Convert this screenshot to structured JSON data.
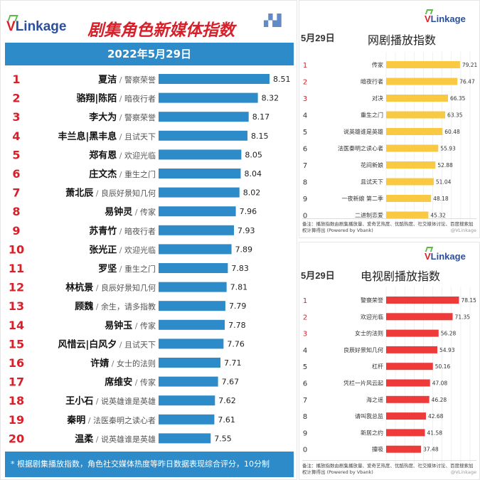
{
  "left": {
    "logo": {
      "v": "V",
      "rest": "Linkage"
    },
    "title": "剧集角色新媒体指数",
    "date": "2022年5月29日",
    "footer": "* 根据剧集播放指数，角色社交媒体热度等昨日数据表现综合评分，10分制",
    "footer_watermark": "VLinkage"
  },
  "right_top": {
    "logo": {
      "v": "V",
      "rest": "Linkage"
    },
    "date": "5月29日",
    "title": "网剧播放指数",
    "note": "备注：播放指数由剧集播放量、爱奇艺热度、优酷热度、社交媒体讨论、百度搜索加权计算得出 (Powered by Vbank)",
    "watermark": "@VLinkage"
  },
  "right_bottom": {
    "logo": {
      "v": "V",
      "rest": "Linkage"
    },
    "date": "5月29日",
    "title": "电视剧播放指数",
    "note": "备注：播放指数由剧集播放量、爱奇艺热度、优酷热度、社交媒体讨论、百度搜索加权计算得出 (Powered by Vbank)",
    "watermark": "@VLinkage"
  },
  "colors": {
    "brand_blue": "#2e8bc9",
    "rank_red": "#d8202a",
    "web_bar": "#f9c943",
    "tv_bar": "#ef3a3a"
  },
  "chart_data": [
    {
      "type": "bar",
      "orientation": "horizontal",
      "title": "剧集角色新媒体指数",
      "subtitle": "2022年5月29日",
      "ranks": [
        "1",
        "2",
        "3",
        "4",
        "5",
        "6",
        "7",
        "8",
        "9",
        "10",
        "11",
        "12",
        "13",
        "14",
        "15",
        "16",
        "17",
        "18",
        "19",
        "20"
      ],
      "names": [
        "夏洁",
        "骆翔|陈陌",
        "李大为",
        "丰兰息|黑丰息",
        "郑有恩",
        "庄文杰",
        "萧北辰",
        "易钟灵",
        "苏青竹",
        "张光正",
        "罗坚",
        "林杭景",
        "顾魏",
        "易钟玉",
        "风惜云|白风夕",
        "许婧",
        "席维安",
        "王小石",
        "秦明",
        "温柔"
      ],
      "dramas": [
        "警察荣誉",
        "暗夜行者",
        "警察荣誉",
        "且试天下",
        "欢迎光临",
        "重生之门",
        "良辰好景知几何",
        "传家",
        "暗夜行者",
        "欢迎光临",
        "重生之门",
        "良辰好景知几何",
        "余生，请多指教",
        "传家",
        "且试天下",
        "女士的法则",
        "传家",
        "说英雄谁是英雄",
        "法医秦明之读心者",
        "说英雄谁是英雄"
      ],
      "values": [
        8.51,
        8.32,
        8.17,
        8.15,
        8.05,
        8.04,
        8.02,
        7.96,
        7.93,
        7.89,
        7.83,
        7.81,
        7.79,
        7.78,
        7.76,
        7.71,
        7.67,
        7.62,
        7.61,
        7.55
      ],
      "separator": "/"
    },
    {
      "type": "bar",
      "orientation": "horizontal",
      "title": "网剧播放指数",
      "ranks": [
        "1",
        "2",
        "3",
        "4",
        "5",
        "6",
        "7",
        "8",
        "9",
        "0"
      ],
      "categories": [
        "传家",
        "暗夜行者",
        "对决",
        "重生之门",
        "说英雄谁是英雄",
        "法医秦明之读心者",
        "花间新娘",
        "且试天下",
        "一夜新娘 第二季",
        "二进制恋爱"
      ],
      "values": [
        79.21,
        76.47,
        66.35,
        63.35,
        60.48,
        55.93,
        52.88,
        51.04,
        48.18,
        45.32
      ],
      "grid": true
    },
    {
      "type": "bar",
      "orientation": "horizontal",
      "title": "电视剧播放指数",
      "ranks": [
        "1",
        "2",
        "3",
        "4",
        "5",
        "6",
        "7",
        "8",
        "9",
        "0"
      ],
      "categories": [
        "警察荣誉",
        "欢迎光临",
        "女士的法则",
        "良辰好景知几何",
        "杠杆",
        "凭栏一片风云起",
        "海之谣",
        "请叫我总监",
        "新居之约",
        "撞吸"
      ],
      "values": [
        78.15,
        71.35,
        56.28,
        54.93,
        50.16,
        47.08,
        46.28,
        42.68,
        41.58,
        37.48
      ],
      "grid": true
    }
  ]
}
